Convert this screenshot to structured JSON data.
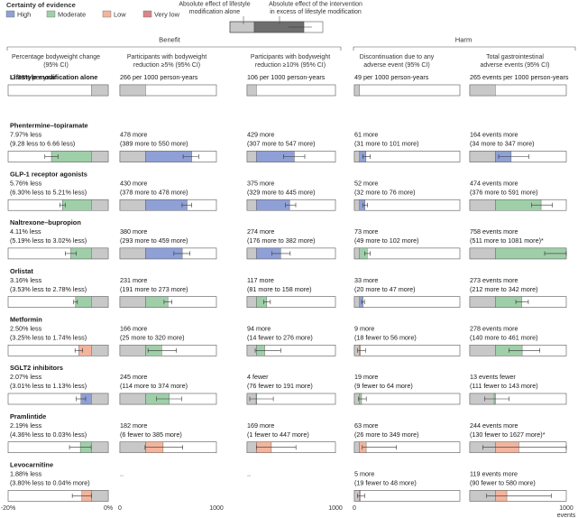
{
  "legend": {
    "title": "Certainty of evidence",
    "items": [
      {
        "label": "High",
        "color": "#8fa0d6"
      },
      {
        "label": "Moderate",
        "color": "#9fcfa9"
      },
      {
        "label": "Low",
        "color": "#f2b49c"
      },
      {
        "label": "Very low",
        "color": "#d9878a"
      }
    ],
    "effect_key_left": "Absolute effect of lifestyle modification alone",
    "effect_key_right": "Absolute effect of the intervention in excess of lifestyle modification",
    "bar_gray": "#c8c8c8",
    "bar_dark": "#6e6e6e"
  },
  "header": {
    "benefit": "Benefit",
    "harm": "Harm"
  },
  "chart_data": {
    "type": "bar",
    "columns": [
      {
        "id": "weight",
        "group": "Benefit",
        "header": [
          "Percentage bodyweight change",
          "(95% CI)"
        ],
        "axis_min": -20,
        "axis_max": 0,
        "axis_labels": [
          "-20%",
          "0%"
        ]
      },
      {
        "id": "r5",
        "group": "Benefit",
        "header": [
          "Participants with bodyweight",
          "reduction ≥5% (95% CI)"
        ],
        "axis_min": 0,
        "axis_max": 1000,
        "axis_labels": [
          "0",
          "1000"
        ]
      },
      {
        "id": "r10",
        "group": "Benefit",
        "header": [
          "Participants with bodyweight",
          "reduction ≥10% (95% CI)"
        ],
        "axis_min": 0,
        "axis_max": 1000,
        "axis_labels": [
          "",
          "1000"
        ]
      },
      {
        "id": "disc",
        "group": "Harm",
        "header": [
          "Discontinuation due to any",
          "adverse event (95% CI)"
        ],
        "axis_min": 0,
        "axis_max": 1000,
        "axis_labels": [
          "0",
          ""
        ]
      },
      {
        "id": "gi",
        "group": "Harm",
        "header": [
          "Total gastrointestinal",
          "adverse events (95% CI)"
        ],
        "axis_min": 0,
        "axis_max": 1000,
        "axis_labels": [
          "",
          "1000",
          "events"
        ]
      }
    ],
    "rows": [
      {
        "name": "Lifestyle modification alone",
        "cells": [
          {
            "l1": "-3.38% per year",
            "l2": "",
            "base": -3.38,
            "est": null,
            "lo": null,
            "hi": null,
            "cert": null
          },
          {
            "l1": "266 per 1000 person-years",
            "l2": "",
            "base": 266,
            "est": null,
            "lo": null,
            "hi": null,
            "cert": null
          },
          {
            "l1": "106 per 1000 person-years",
            "l2": "",
            "base": 106,
            "est": null,
            "lo": null,
            "hi": null,
            "cert": null
          },
          {
            "l1": "49 per 1000 person-years",
            "l2": "",
            "base": 49,
            "est": null,
            "lo": null,
            "hi": null,
            "cert": null
          },
          {
            "l1": "265 events per 1000 person-years",
            "l2": "",
            "base": 265,
            "est": null,
            "lo": null,
            "hi": null,
            "cert": null
          }
        ]
      },
      {
        "name": "Phentermine–topiramate",
        "cells": [
          {
            "l1": "7.97% less",
            "l2": "(9.28 less to 6.66 less)",
            "base": -3.38,
            "est": -7.97,
            "lo": -9.28,
            "hi": -6.66,
            "cert": "Moderate"
          },
          {
            "l1": "478 more",
            "l2": "(389 more to 550 more)",
            "base": 266,
            "est": 478,
            "lo": 389,
            "hi": 550,
            "cert": "High"
          },
          {
            "l1": "429 more",
            "l2": "(307 more to 547 more)",
            "base": 106,
            "est": 429,
            "lo": 307,
            "hi": 547,
            "cert": "High"
          },
          {
            "l1": "61 more",
            "l2": "(31 more to 101 more)",
            "base": 49,
            "est": 61,
            "lo": 31,
            "hi": 101,
            "cert": "High"
          },
          {
            "l1": "164 events more",
            "l2": "(34 more to 347 more)",
            "base": 265,
            "est": 164,
            "lo": 34,
            "hi": 347,
            "cert": "High"
          }
        ]
      },
      {
        "name": "GLP-1 receptor agonists",
        "cells": [
          {
            "l1": "5.76% less",
            "l2": "(6.30% less to 5.21% less)",
            "base": -3.38,
            "est": -5.76,
            "lo": -6.3,
            "hi": -5.21,
            "cert": "Moderate"
          },
          {
            "l1": "430 more",
            "l2": "(378 more to 478 more)",
            "base": 266,
            "est": 430,
            "lo": 378,
            "hi": 478,
            "cert": "High"
          },
          {
            "l1": "375 more",
            "l2": "(329 more to 445 more)",
            "base": 106,
            "est": 375,
            "lo": 329,
            "hi": 445,
            "cert": "High"
          },
          {
            "l1": "52 more",
            "l2": "(32 more to 76 more)",
            "base": 49,
            "est": 52,
            "lo": 32,
            "hi": 76,
            "cert": "High"
          },
          {
            "l1": "474 events more",
            "l2": "(376 more to 591 more)",
            "base": 265,
            "est": 474,
            "lo": 376,
            "hi": 591,
            "cert": "Moderate"
          }
        ]
      },
      {
        "name": "Naltrexone–bupropion",
        "cells": [
          {
            "l1": "4.11% less",
            "l2": "(5.19% less to 3.02% less)",
            "base": -3.38,
            "est": -4.11,
            "lo": -5.19,
            "hi": -3.02,
            "cert": "Moderate"
          },
          {
            "l1": "380 more",
            "l2": "(293 more to 459 more)",
            "base": 266,
            "est": 380,
            "lo": 293,
            "hi": 459,
            "cert": "High"
          },
          {
            "l1": "274 more",
            "l2": "(176 more to 382 more)",
            "base": 106,
            "est": 274,
            "lo": 176,
            "hi": 382,
            "cert": "High"
          },
          {
            "l1": "73 more",
            "l2": "(49 more to 102 more)",
            "base": 49,
            "est": 73,
            "lo": 49,
            "hi": 102,
            "cert": "Moderate"
          },
          {
            "l1": "758 events more",
            "l2": "(511 more to 1081 more)*",
            "base": 265,
            "est": 758,
            "lo": 511,
            "hi": 1081,
            "cert": "Moderate"
          }
        ]
      },
      {
        "name": "Orlistat",
        "cells": [
          {
            "l1": "3.16% less",
            "l2": "(3.53% less to 2.78% less)",
            "base": -3.38,
            "est": -3.16,
            "lo": -3.53,
            "hi": -2.78,
            "cert": "Moderate"
          },
          {
            "l1": "231 more",
            "l2": "(191 more to 273 more)",
            "base": 266,
            "est": 231,
            "lo": 191,
            "hi": 273,
            "cert": "Moderate"
          },
          {
            "l1": "117 more",
            "l2": "(81 more to 158 more)",
            "base": 106,
            "est": 117,
            "lo": 81,
            "hi": 158,
            "cert": "Moderate"
          },
          {
            "l1": "33 more",
            "l2": "(20 more to 47 more)",
            "base": 49,
            "est": 33,
            "lo": 20,
            "hi": 47,
            "cert": "High"
          },
          {
            "l1": "273 events more",
            "l2": "(212 more to 342 more)",
            "base": 265,
            "est": 273,
            "lo": 212,
            "hi": 342,
            "cert": "Moderate"
          }
        ]
      },
      {
        "name": "Metformin",
        "cells": [
          {
            "l1": "2.50% less",
            "l2": "(3.25% less to 1.74% less)",
            "base": -3.38,
            "est": -2.5,
            "lo": -3.25,
            "hi": -1.74,
            "cert": "Low"
          },
          {
            "l1": "166 more",
            "l2": "(25 more to 320 more)",
            "base": 266,
            "est": 166,
            "lo": 25,
            "hi": 320,
            "cert": "Moderate"
          },
          {
            "l1": "94 more",
            "l2": "(14 fewer to 276 more)",
            "base": 106,
            "est": 94,
            "lo": -14,
            "hi": 276,
            "cert": "Moderate"
          },
          {
            "l1": "9 more",
            "l2": "(18 fewer to 56 more)",
            "base": 49,
            "est": 9,
            "lo": -18,
            "hi": 56,
            "cert": "Low"
          },
          {
            "l1": "278 events more",
            "l2": "(140 more to 461 more)",
            "base": 265,
            "est": 278,
            "lo": 140,
            "hi": 461,
            "cert": "Moderate"
          }
        ]
      },
      {
        "name": "SGLT2 inhibitors",
        "cells": [
          {
            "l1": "2.07% less",
            "l2": "(3.01% less to 1.13% less)",
            "base": -3.38,
            "est": -2.07,
            "lo": -3.01,
            "hi": -1.13,
            "cert": "High"
          },
          {
            "l1": "245 more",
            "l2": "(114 more to 374 more)",
            "base": 266,
            "est": 245,
            "lo": 114,
            "hi": 374,
            "cert": "Moderate"
          },
          {
            "l1": "4 fewer",
            "l2": "(76 fewer to 191 more)",
            "base": 106,
            "est": -4,
            "lo": -76,
            "hi": 191,
            "cert": "Moderate"
          },
          {
            "l1": "19 more",
            "l2": "(9 fewer to 64 more)",
            "base": 49,
            "est": 19,
            "lo": -9,
            "hi": 64,
            "cert": "Moderate"
          },
          {
            "l1": "13 events fewer",
            "l2": "(111 fewer to 143 more)",
            "base": 265,
            "est": -13,
            "lo": -111,
            "hi": 143,
            "cert": "Moderate"
          }
        ]
      },
      {
        "name": "Pramlintide",
        "cells": [
          {
            "l1": "2.19% less",
            "l2": "(4.36% less to 0.03% less)",
            "base": -3.38,
            "est": -2.19,
            "lo": -4.36,
            "hi": -0.03,
            "cert": "Moderate"
          },
          {
            "l1": "182 more",
            "l2": "(6 fewer to 385 more)",
            "base": 266,
            "est": 182,
            "lo": -6,
            "hi": 385,
            "cert": "Low"
          },
          {
            "l1": "169 more",
            "l2": "(1 fewer to 447 more)",
            "base": 106,
            "est": 169,
            "lo": -1,
            "hi": 447,
            "cert": "Low"
          },
          {
            "l1": "63 more",
            "l2": "(26 more to 349 more)",
            "base": 49,
            "est": 63,
            "lo": 26,
            "hi": 349,
            "cert": "Low"
          },
          {
            "l1": "244 events more",
            "l2": "(130 fewer to 1627 more)*",
            "base": 265,
            "est": 244,
            "lo": -130,
            "hi": 1627,
            "cert": "Low"
          }
        ]
      },
      {
        "name": "Levocarnitine",
        "cells": [
          {
            "l1": "1.88% less",
            "l2": "(3.80% less to 0.04% more)",
            "base": -3.38,
            "est": -1.88,
            "lo": -3.8,
            "hi": 0.04,
            "cert": "Low"
          },
          {
            "l1": "..",
            "l2": "",
            "base": null,
            "est": null,
            "lo": null,
            "hi": null,
            "cert": null
          },
          {
            "l1": "..",
            "l2": "",
            "base": null,
            "est": null,
            "lo": null,
            "hi": null,
            "cert": null
          },
          {
            "l1": "5 more",
            "l2": "(19 fewer to 48 more)",
            "base": 49,
            "est": 5,
            "lo": -19,
            "hi": 48,
            "cert": "Low"
          },
          {
            "l1": "119 events more",
            "l2": "(90 fewer to 580 more)",
            "base": 265,
            "est": 119,
            "lo": -90,
            "hi": 580,
            "cert": "Low"
          }
        ]
      }
    ]
  }
}
